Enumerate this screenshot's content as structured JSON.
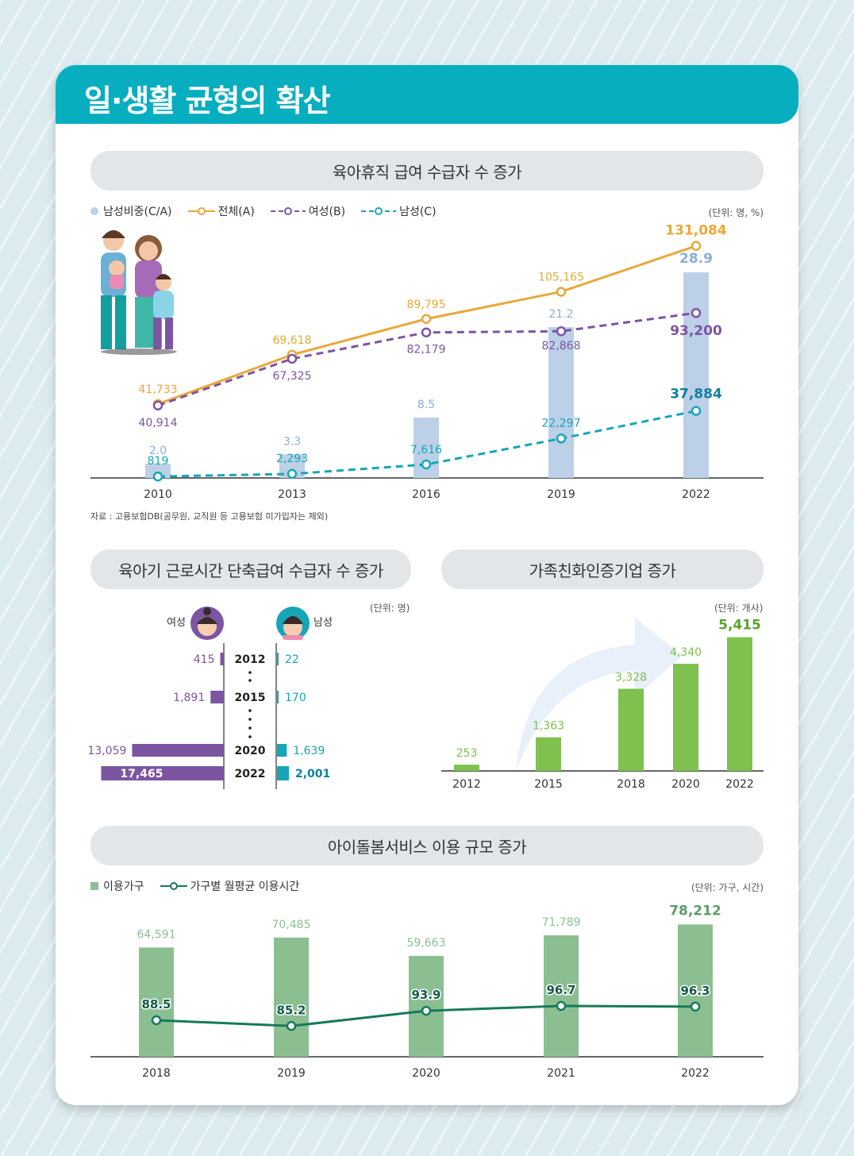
{
  "page_title": "일·생활 균형의 확산",
  "colors": {
    "teal": "#07aebf",
    "orange": "#e8a83a",
    "purple": "#7c55a2",
    "cyan": "#16a6b8",
    "bar_blue": "#bcd0e8",
    "green": "#7ec14e",
    "bar_green": "#8bbf92",
    "dark_green": "#17795c"
  },
  "chart_data": [
    {
      "type": "bar",
      "title": "육아휴직 급여 수급자 수 증가",
      "unit": "(단위: 명, %)",
      "note": "자료 : 고용보험DB(공무원, 교직원 등 고용보험 미가입자는 제외)",
      "categories": [
        "2010",
        "2013",
        "2016",
        "2019",
        "2022"
      ],
      "series": [
        {
          "name": "남성비중(C/A)",
          "kind": "bar",
          "values": [
            2.0,
            3.3,
            8.5,
            21.2,
            28.9
          ],
          "labels": [
            "2.0",
            "3.3",
            "8.5",
            "21.2",
            "28.9"
          ]
        },
        {
          "name": "전체(A)",
          "kind": "line",
          "values": [
            41733,
            69618,
            89795,
            105165,
            131084
          ],
          "labels": [
            "41,733",
            "69,618",
            "89,795",
            "105,165",
            "131,084"
          ]
        },
        {
          "name": "여성(B)",
          "kind": "dashed-line",
          "values": [
            40914,
            67325,
            82179,
            82868,
            93200
          ],
          "labels": [
            "40,914",
            "67,325",
            "82,179",
            "82,868",
            "93,200"
          ]
        },
        {
          "name": "남성(C)",
          "kind": "dashed-line",
          "values": [
            819,
            2293,
            7616,
            22297,
            37884
          ],
          "labels": [
            "819",
            "2,293",
            "7,616",
            "22,297",
            "37,884"
          ]
        }
      ]
    },
    {
      "type": "bar",
      "title": "육아기 근로시간 단축급여 수급자 수 증가",
      "unit": "(단위: 명)",
      "left_label": "여성",
      "right_label": "남성",
      "categories": [
        "2012",
        "2015",
        "2020",
        "2022"
      ],
      "series": [
        {
          "name": "여성",
          "values": [
            415,
            1891,
            13059,
            17465
          ],
          "labels": [
            "415",
            "1,891",
            "13,059",
            "17,465"
          ]
        },
        {
          "name": "남성",
          "values": [
            22,
            170,
            1639,
            2001
          ],
          "labels": [
            "22",
            "170",
            "1,639",
            "2,001"
          ]
        }
      ]
    },
    {
      "type": "bar",
      "title": "가족친화인증기업 증가",
      "unit": "(단위: 개사)",
      "categories": [
        "2012",
        "2015",
        "2018",
        "2020",
        "2022"
      ],
      "values": [
        253,
        1363,
        3328,
        4340,
        5415
      ],
      "labels": [
        "253",
        "1,363",
        "3,328",
        "4,340",
        "5,415"
      ]
    },
    {
      "type": "bar",
      "title": "아이돌봄서비스 이용 규모 증가",
      "unit": "(단위: 가구, 시간)",
      "categories": [
        "2018",
        "2019",
        "2020",
        "2021",
        "2022"
      ],
      "series": [
        {
          "name": "이용가구",
          "kind": "bar",
          "values": [
            64591,
            70485,
            59663,
            71789,
            78212
          ],
          "labels": [
            "64,591",
            "70,485",
            "59,663",
            "71,789",
            "78,212"
          ]
        },
        {
          "name": "가구별 월평균 이용시간",
          "kind": "line",
          "values": [
            88.5,
            85.2,
            93.9,
            96.7,
            96.3
          ],
          "labels": [
            "88.5",
            "85.2",
            "93.9",
            "96.7",
            "96.3"
          ]
        }
      ]
    }
  ]
}
